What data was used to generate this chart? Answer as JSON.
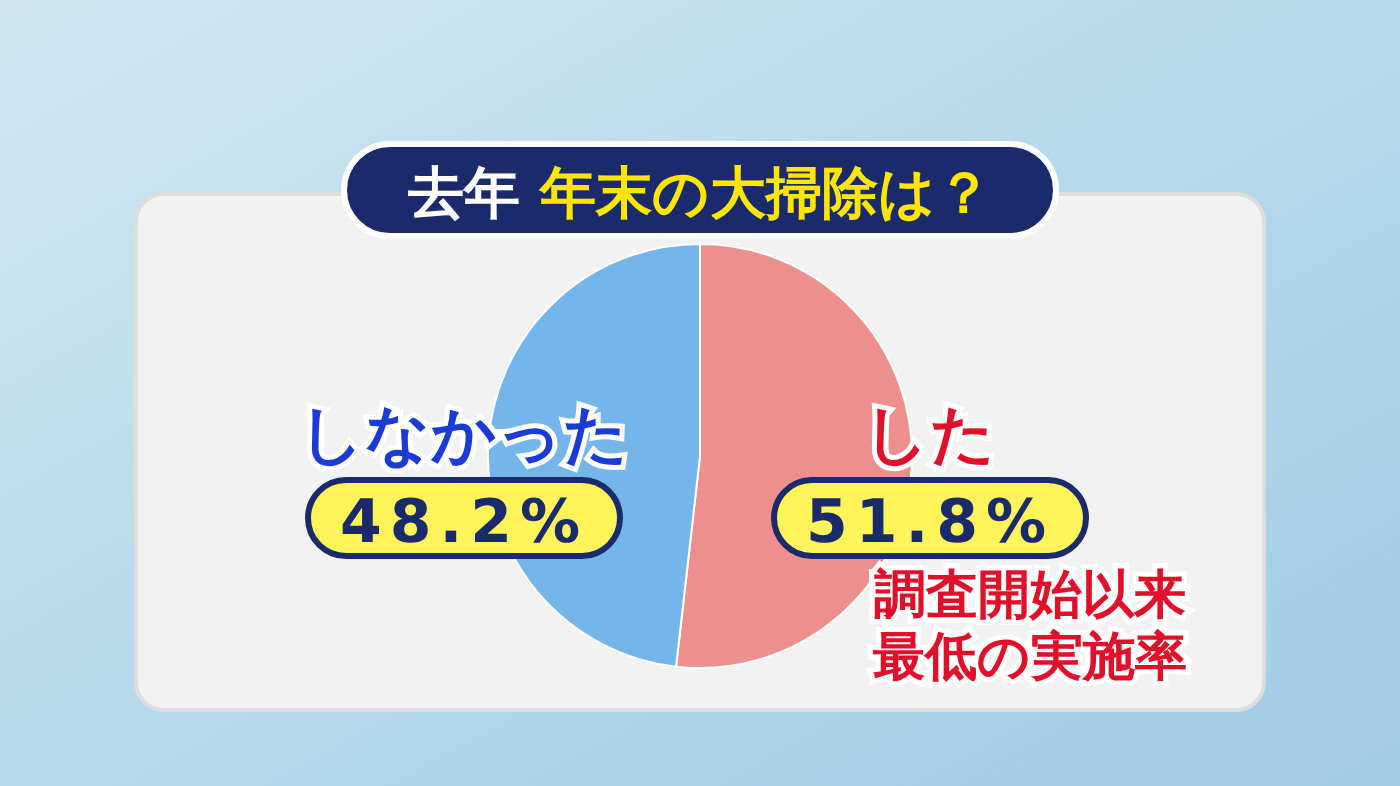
{
  "chart_data": {
    "type": "pie",
    "title": "去年 年末の大掃除は？",
    "categories": [
      "した",
      "しなかった"
    ],
    "values": [
      51.8,
      48.2
    ],
    "colors": [
      "#ee8f8f",
      "#74b6ea"
    ],
    "value_labels": [
      "51.8%",
      "48.2%"
    ],
    "annotations": [
      "調査開始以来最低の実施率"
    ]
  }
}
